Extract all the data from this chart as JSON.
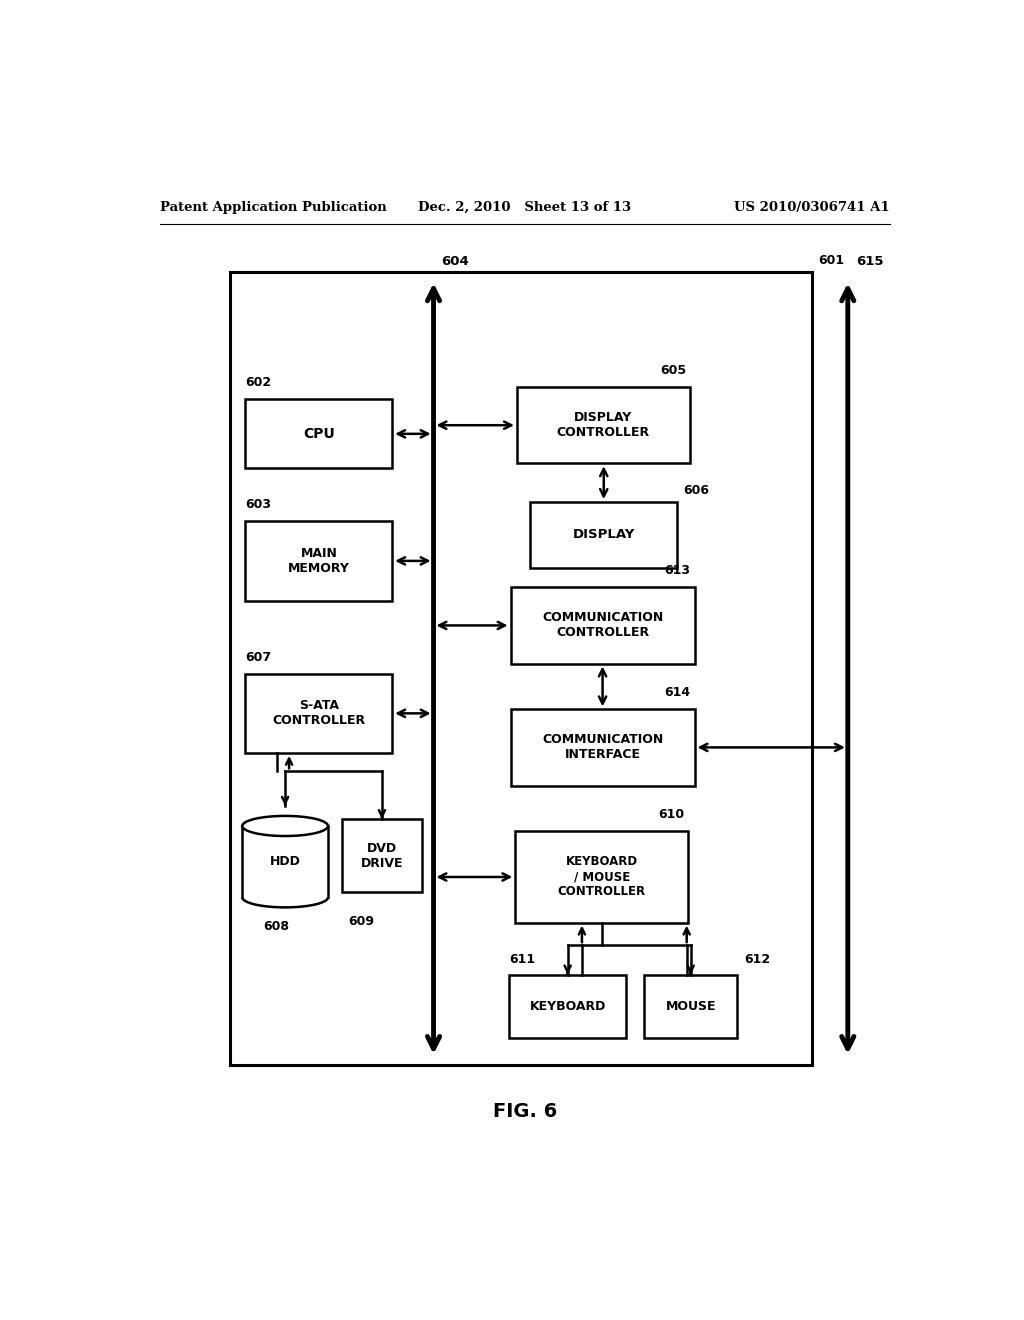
{
  "patent_header": {
    "left": "Patent Application Publication",
    "center": "Dec. 2, 2010   Sheet 13 of 13",
    "right": "US 2010/0306741 A1"
  },
  "fig_caption": "FIG. 6",
  "background_color": "#ffffff"
}
